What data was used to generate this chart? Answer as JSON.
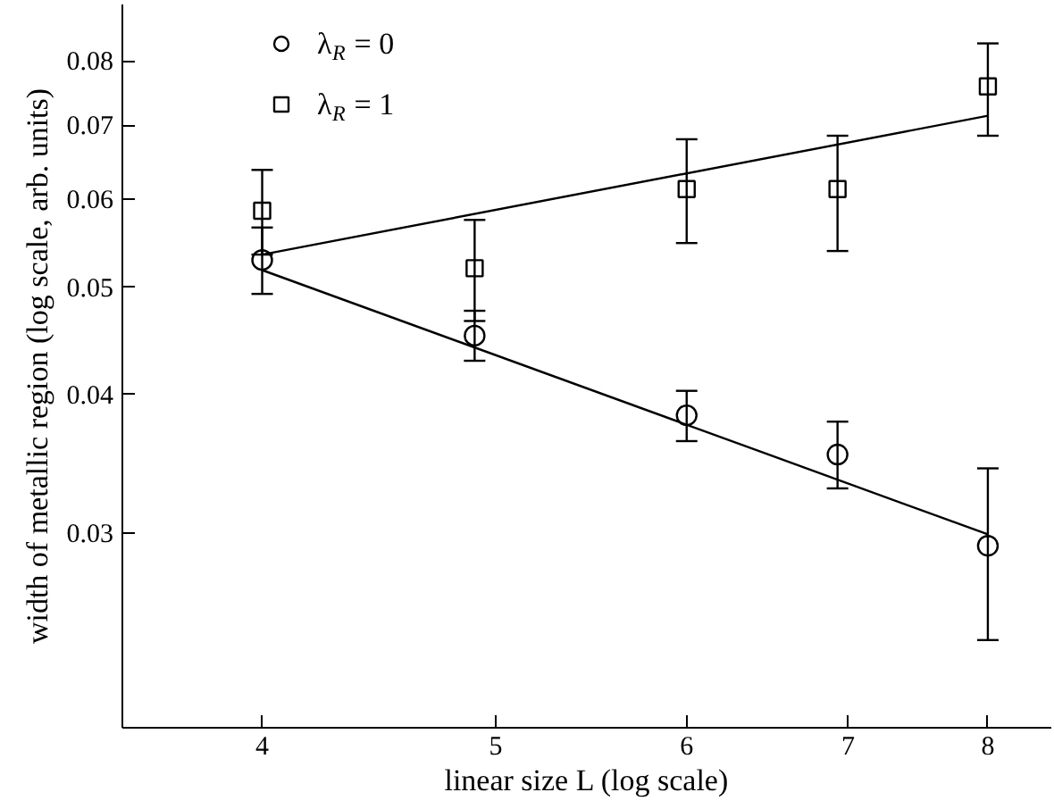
{
  "chart_data": {
    "type": "scatter",
    "xlabel": "linear size L (log scale)",
    "ylabel": "width of metallic region (log scale, arb. units)",
    "log": "xy",
    "xlim": [
      3.5,
      8.5
    ],
    "ylim": [
      0.02,
      0.09
    ],
    "xticks": [
      4,
      5,
      6,
      7,
      8
    ],
    "yticks": [
      0.03,
      0.04,
      0.05,
      0.06,
      0.07,
      0.08
    ],
    "grid": false,
    "legend": "top left",
    "series": [
      {
        "name": "λ$_{R}$ = 0",
        "color": "#000000",
        "marker": "circle",
        "x": [
          4,
          4.9,
          6,
          6.93,
          8
        ],
        "values": [
          0.0529,
          0.0452,
          0.0383,
          0.0353,
          0.0292
        ],
        "errors": [
          [
            0.0493,
            0.0566
          ],
          [
            0.0429,
            0.0476
          ],
          [
            0.0363,
            0.0403
          ],
          [
            0.0329,
            0.0378
          ],
          [
            0.024,
            0.0343
          ]
        ]
      },
      {
        "name": "λ$_{R}$ = 1",
        "color": "#000000",
        "marker": "square",
        "x": [
          4,
          4.9,
          6,
          6.93,
          8
        ],
        "values": [
          0.0586,
          0.052,
          0.0613,
          0.0613,
          0.0759
        ],
        "errors": [
          [
            0.0535,
            0.0638
          ],
          [
            0.0466,
            0.0575
          ],
          [
            0.0548,
            0.068
          ],
          [
            0.0539,
            0.0685
          ],
          [
            0.0685,
            0.083
          ]
        ]
      },
      {
        "type": "line",
        "color": "#000000",
        "x": [
          4,
          8
        ],
        "values": [
          0.0518,
          0.0299
        ]
      },
      {
        "type": "line",
        "color": "#000000",
        "x": [
          4,
          8
        ],
        "values": [
          0.0535,
          0.0714
        ]
      }
    ]
  }
}
